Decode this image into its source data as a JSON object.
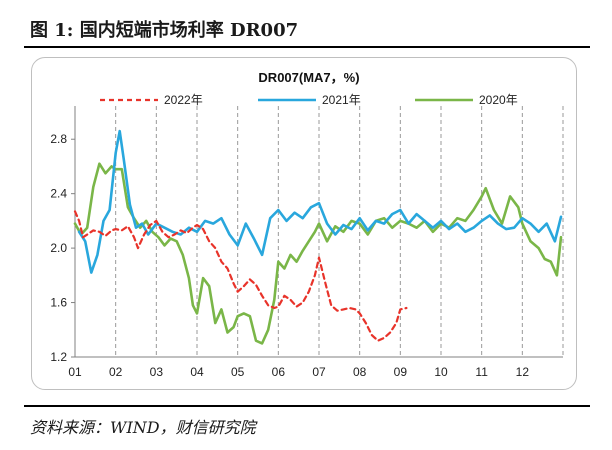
{
  "figure": {
    "label": "图 1:",
    "title": "国内短端市场利率 DR007",
    "source": "资料来源：WIND，财信研究院"
  },
  "colors": {
    "s2022": "#e8332a",
    "s2021": "#29a7dd",
    "s2020": "#7ab648"
  },
  "chart_data": {
    "type": "line",
    "title": "DR007(MA7，%)",
    "xlabel": "",
    "ylabel": "",
    "x_ticks": [
      "01",
      "02",
      "03",
      "04",
      "05",
      "06",
      "07",
      "08",
      "09",
      "10",
      "11",
      "12"
    ],
    "y_ticks": [
      "1.2",
      "1.6",
      "2.0",
      "2.4",
      "2.8"
    ],
    "ylim": [
      1.2,
      3.0
    ],
    "xlim": [
      1,
      13
    ],
    "grid": "vertical dashed",
    "legend": "top",
    "series": [
      {
        "name": "2022年",
        "style": "dashed",
        "color": "#e8332a",
        "x": [
          1.0,
          1.1,
          1.2,
          1.3,
          1.45,
          1.6,
          1.75,
          1.9,
          2.0,
          2.15,
          2.3,
          2.45,
          2.55,
          2.7,
          2.85,
          3.0,
          3.15,
          3.3,
          3.45,
          3.6,
          3.75,
          3.9,
          4.0,
          4.15,
          4.3,
          4.45,
          4.6,
          4.75,
          4.9,
          5.0,
          5.15,
          5.3,
          5.45,
          5.6,
          5.75,
          5.9,
          6.0,
          6.15,
          6.3,
          6.45,
          6.6,
          6.75,
          6.9,
          7.0,
          7.15,
          7.3,
          7.45,
          7.6,
          7.75,
          7.9,
          8.0,
          8.15,
          8.3,
          8.45,
          8.6,
          8.75,
          8.9,
          9.0,
          9.15
        ],
        "values": [
          2.27,
          2.2,
          2.08,
          2.1,
          2.13,
          2.12,
          2.09,
          2.13,
          2.14,
          2.13,
          2.16,
          2.08,
          2.0,
          2.1,
          2.17,
          2.2,
          2.12,
          2.08,
          2.1,
          2.13,
          2.11,
          2.15,
          2.17,
          2.14,
          2.05,
          2.0,
          1.9,
          1.85,
          1.74,
          1.68,
          1.72,
          1.77,
          1.73,
          1.65,
          1.58,
          1.56,
          1.57,
          1.65,
          1.62,
          1.57,
          1.6,
          1.68,
          1.8,
          1.93,
          1.75,
          1.58,
          1.54,
          1.55,
          1.56,
          1.55,
          1.52,
          1.45,
          1.36,
          1.32,
          1.34,
          1.38,
          1.45,
          1.55,
          1.56
        ]
      },
      {
        "name": "2021年",
        "style": "solid",
        "color": "#29a7dd",
        "x": [
          1.1,
          1.25,
          1.4,
          1.55,
          1.7,
          1.85,
          2.0,
          2.1,
          2.2,
          2.35,
          2.5,
          2.65,
          2.8,
          3.0,
          3.2,
          3.4,
          3.6,
          3.8,
          4.0,
          4.2,
          4.4,
          4.6,
          4.8,
          5.0,
          5.2,
          5.4,
          5.6,
          5.8,
          6.0,
          6.2,
          6.4,
          6.6,
          6.8,
          7.0,
          7.2,
          7.4,
          7.6,
          7.8,
          8.0,
          8.2,
          8.4,
          8.6,
          8.8,
          9.0,
          9.2,
          9.4,
          9.6,
          9.8,
          10.0,
          10.2,
          10.4,
          10.6,
          10.8,
          11.0,
          11.2,
          11.4,
          11.6,
          11.8,
          12.0,
          12.2,
          12.4,
          12.6,
          12.8,
          12.95
        ],
        "values": [
          2.12,
          2.05,
          1.82,
          1.95,
          2.2,
          2.28,
          2.7,
          2.86,
          2.65,
          2.32,
          2.15,
          2.18,
          2.1,
          2.18,
          2.15,
          2.12,
          2.1,
          2.15,
          2.12,
          2.2,
          2.18,
          2.22,
          2.1,
          2.02,
          2.18,
          2.07,
          1.95,
          2.22,
          2.28,
          2.2,
          2.26,
          2.22,
          2.3,
          2.33,
          2.18,
          2.1,
          2.17,
          2.14,
          2.22,
          2.13,
          2.2,
          2.18,
          2.25,
          2.28,
          2.18,
          2.25,
          2.2,
          2.15,
          2.2,
          2.14,
          2.18,
          2.12,
          2.15,
          2.2,
          2.24,
          2.18,
          2.14,
          2.15,
          2.22,
          2.18,
          2.12,
          2.18,
          2.05,
          2.23
        ]
      },
      {
        "name": "2020年",
        "style": "solid",
        "color": "#7ab648",
        "x": [
          1.0,
          1.15,
          1.3,
          1.45,
          1.6,
          1.75,
          1.9,
          2.0,
          2.15,
          2.3,
          2.45,
          2.6,
          2.75,
          2.9,
          3.05,
          3.2,
          3.35,
          3.5,
          3.65,
          3.8,
          3.9,
          4.0,
          4.15,
          4.3,
          4.45,
          4.6,
          4.75,
          4.9,
          5.0,
          5.15,
          5.3,
          5.45,
          5.6,
          5.75,
          5.9,
          6.0,
          6.15,
          6.3,
          6.45,
          6.6,
          6.75,
          6.9,
          7.0,
          7.2,
          7.4,
          7.6,
          7.8,
          8.0,
          8.2,
          8.4,
          8.6,
          8.8,
          9.0,
          9.2,
          9.4,
          9.6,
          9.8,
          10.0,
          10.2,
          10.4,
          10.6,
          10.8,
          11.0,
          11.1,
          11.3,
          11.5,
          11.7,
          11.9,
          12.0,
          12.2,
          12.4,
          12.55,
          12.7,
          12.85,
          12.95
        ],
        "values": [
          2.18,
          2.1,
          2.15,
          2.45,
          2.62,
          2.55,
          2.6,
          2.58,
          2.58,
          2.3,
          2.22,
          2.15,
          2.2,
          2.12,
          2.08,
          2.02,
          2.07,
          2.05,
          1.95,
          1.78,
          1.58,
          1.52,
          1.78,
          1.72,
          1.45,
          1.55,
          1.38,
          1.42,
          1.5,
          1.52,
          1.5,
          1.32,
          1.3,
          1.4,
          1.62,
          1.9,
          1.85,
          1.95,
          1.9,
          1.98,
          2.05,
          2.12,
          2.18,
          2.05,
          2.16,
          2.12,
          2.2,
          2.18,
          2.1,
          2.2,
          2.22,
          2.15,
          2.2,
          2.18,
          2.15,
          2.2,
          2.12,
          2.18,
          2.15,
          2.22,
          2.2,
          2.28,
          2.38,
          2.44,
          2.28,
          2.18,
          2.38,
          2.3,
          2.18,
          2.05,
          2.0,
          1.92,
          1.9,
          1.8,
          2.08
        ]
      }
    ]
  }
}
